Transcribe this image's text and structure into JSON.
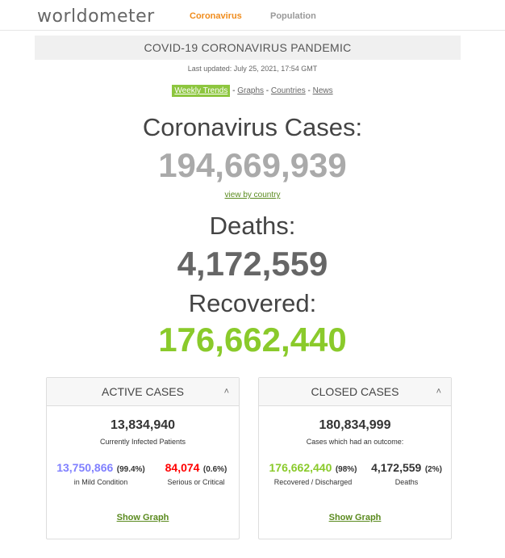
{
  "nav": {
    "logo_a": "worldo",
    "logo_b": "meter",
    "coronavirus": "Coronavirus",
    "population": "Population"
  },
  "banner": "COVID-19 CORONAVIRUS PANDEMIC",
  "last_updated": "Last updated: July 25, 2021, 17:54 GMT",
  "links": {
    "weekly": "Weekly Trends",
    "graphs": "Graphs",
    "countries": "Countries",
    "news": "News",
    "sep": " - "
  },
  "cases": {
    "label": "Coronavirus Cases:",
    "value": "194,669,939",
    "link": "view by country"
  },
  "deaths": {
    "label": "Deaths:",
    "value": "4,172,559"
  },
  "recovered": {
    "label": "Recovered:",
    "value": "176,662,440"
  },
  "active": {
    "title": "ACTIVE CASES",
    "total": "13,834,940",
    "sub": "Currently Infected Patients",
    "mild_value": "13,750,866",
    "mild_pct": "(99.4%)",
    "mild_desc": "in Mild Condition",
    "crit_value": "84,074",
    "crit_pct": "(0.6%)",
    "crit_desc": "Serious or Critical",
    "graph": "Show Graph"
  },
  "closed": {
    "title": "CLOSED CASES",
    "total": "180,834,999",
    "sub": "Cases which had an outcome:",
    "rec_value": "176,662,440",
    "rec_pct": "(98%)",
    "rec_desc": "Recovered / Discharged",
    "death_value": "4,172,559",
    "death_pct": "(2%)",
    "death_desc": "Deaths",
    "graph": "Show Graph"
  },
  "colors": {
    "accent_green": "#8ACA2B",
    "mild_blue": "#8080FF",
    "critical_red": "#FF0000",
    "nav_orange": "#f08c1c"
  }
}
